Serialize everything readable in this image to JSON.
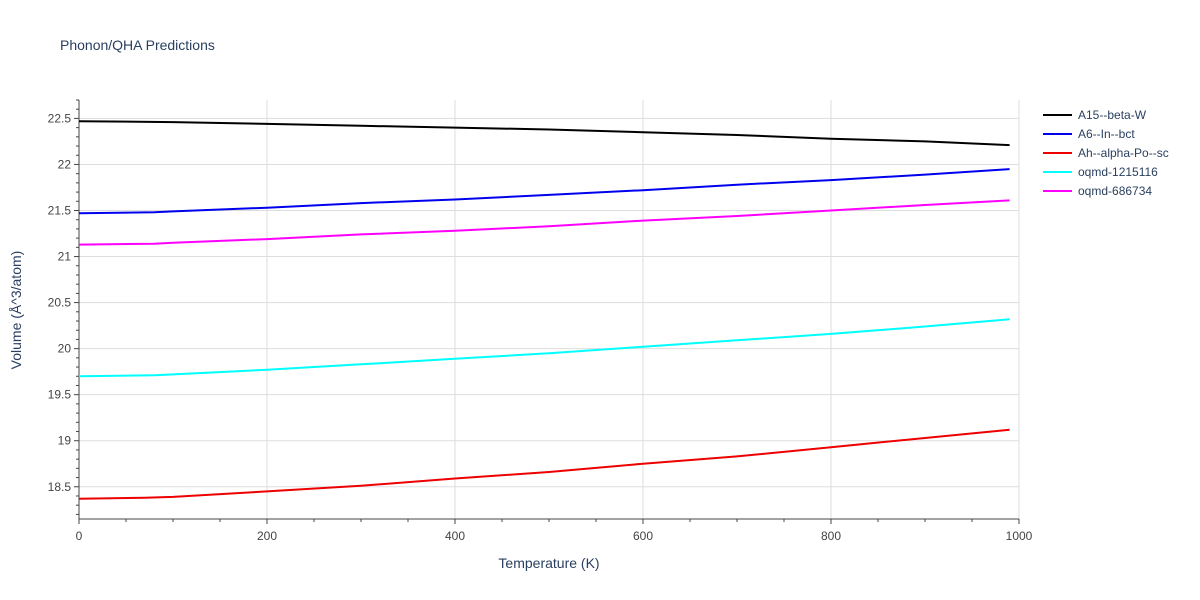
{
  "chart_data": {
    "type": "line",
    "title": "Phonon/QHA Predictions",
    "xlabel": "Temperature (K)",
    "ylabel": "Volume (Å^3/atom)",
    "xlim": [
      0,
      1000
    ],
    "ylim": [
      18.15,
      22.7
    ],
    "x_ticks": [
      0,
      200,
      400,
      600,
      800,
      1000
    ],
    "y_ticks": [
      18.5,
      19,
      19.5,
      20,
      20.5,
      21,
      21.5,
      22,
      22.5
    ],
    "grid": true,
    "legend_position": "top-right",
    "series": [
      {
        "name": "A15--beta-W",
        "color": "#000000",
        "x": [
          0,
          100,
          200,
          300,
          400,
          500,
          600,
          700,
          800,
          900,
          990
        ],
        "y": [
          22.47,
          22.46,
          22.44,
          22.42,
          22.4,
          22.38,
          22.35,
          22.32,
          22.28,
          22.25,
          22.21
        ]
      },
      {
        "name": "A6--In--bct",
        "color": "#0000ee",
        "x": [
          0,
          80,
          100,
          200,
          300,
          400,
          500,
          600,
          700,
          800,
          900,
          990
        ],
        "y": [
          21.47,
          21.48,
          21.49,
          21.53,
          21.58,
          21.62,
          21.67,
          21.72,
          21.78,
          21.83,
          21.89,
          21.95
        ]
      },
      {
        "name": "Ah--alpha-Po--sc",
        "color": "#ee0000",
        "x": [
          0,
          70,
          100,
          200,
          300,
          400,
          500,
          600,
          700,
          800,
          900,
          990
        ],
        "y": [
          18.37,
          18.38,
          18.39,
          18.45,
          18.51,
          18.59,
          18.66,
          18.75,
          18.83,
          18.93,
          19.03,
          19.12
        ]
      },
      {
        "name": "oqmd-1215116",
        "color": "#00ffff",
        "x": [
          0,
          80,
          100,
          200,
          300,
          400,
          500,
          600,
          700,
          800,
          900,
          990
        ],
        "y": [
          19.7,
          19.71,
          19.72,
          19.77,
          19.83,
          19.89,
          19.95,
          20.02,
          20.09,
          20.16,
          20.24,
          20.32
        ]
      },
      {
        "name": "oqmd-686734",
        "color": "#ff00ff",
        "x": [
          0,
          80,
          100,
          200,
          300,
          400,
          500,
          600,
          700,
          800,
          900,
          990
        ],
        "y": [
          21.13,
          21.14,
          21.15,
          21.19,
          21.24,
          21.28,
          21.33,
          21.39,
          21.44,
          21.5,
          21.56,
          21.61
        ]
      }
    ]
  }
}
